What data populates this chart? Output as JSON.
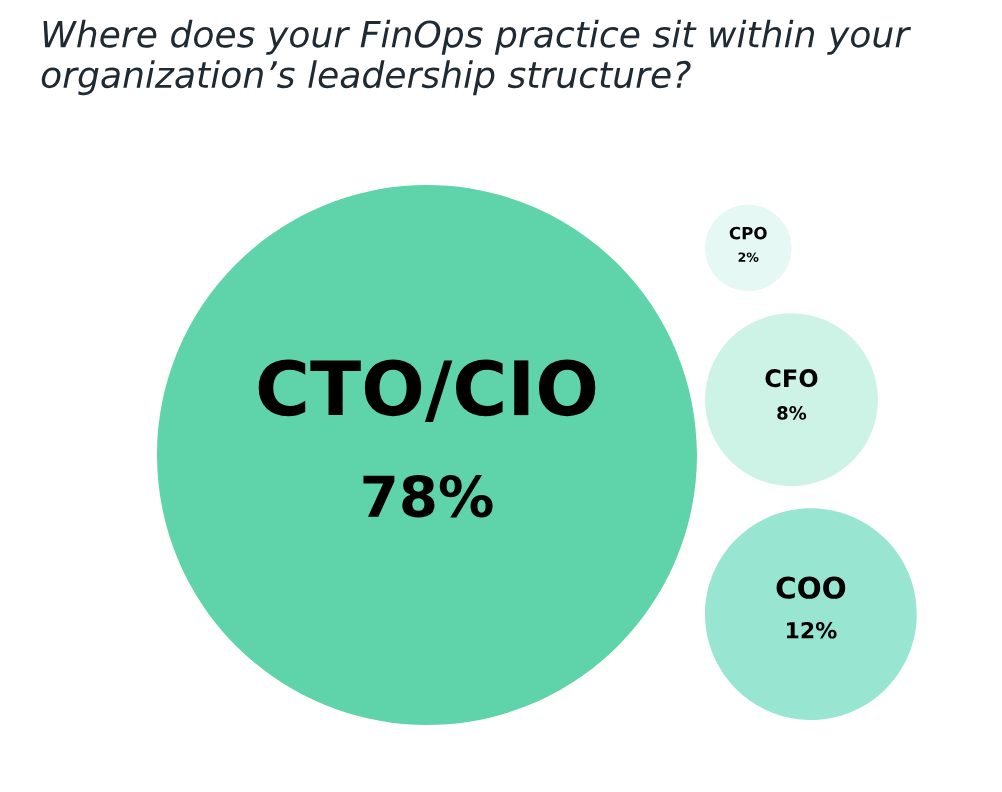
{
  "chart_data": {
    "type": "other",
    "title": "Where does your FinOps practice sit within your organization’s leadership structure?",
    "categories": [
      "CTO/CIO",
      "CPO",
      "CFO",
      "COO"
    ],
    "values": [
      78,
      2,
      8,
      12
    ],
    "value_labels": [
      "78%",
      "2%",
      "8%",
      "12%"
    ],
    "colors": [
      "#5fd3aa",
      "#e6f8f3",
      "#cdf3e6",
      "#98e6d2"
    ]
  }
}
